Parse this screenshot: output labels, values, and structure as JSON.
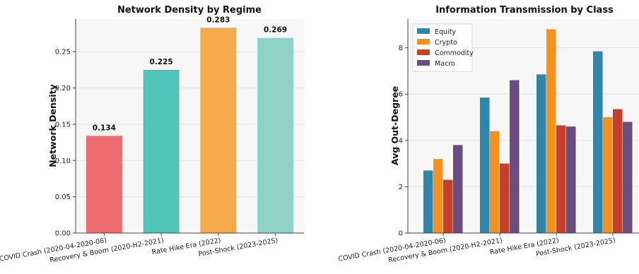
{
  "chart_data": [
    {
      "type": "bar",
      "title": "Network Density by Regime",
      "xlabel": "",
      "ylabel": "Network Density",
      "categories": [
        "COVID Crash (2020-04-2020-06)",
        "Recovery & Boom (2020-H2-2021)",
        "Rate Hike Era (2022)",
        "Post-Shock (2023-2025)"
      ],
      "values": [
        0.134,
        0.225,
        0.283,
        0.269
      ],
      "data_labels": [
        "0.134",
        "0.225",
        "0.283",
        "0.269"
      ],
      "colors": [
        "#ee6b6e",
        "#4ec5b8",
        "#f6aa4c",
        "#8fd3c7"
      ],
      "ylim": [
        0,
        0.295
      ],
      "yticks": [
        0.0,
        0.05,
        0.1,
        0.15,
        0.2,
        0.25
      ],
      "ytick_labels": [
        "0.00",
        "0.05",
        "0.10",
        "0.15",
        "0.20",
        "0.25"
      ],
      "grid": true
    },
    {
      "type": "bar",
      "title": "Information Transmission by Class",
      "xlabel": "",
      "ylabel": "Avg Out-Degree",
      "categories": [
        "COVID Crash (2020-04-2020-06)",
        "Recovery & Boom (2020-H2-2021)",
        "Rate Hike Era (2022)",
        "Post-Shock (2023-2025)"
      ],
      "series": [
        {
          "name": "Equity",
          "color": "#2e86ab",
          "values": [
            2.7,
            5.85,
            6.85,
            7.85
          ]
        },
        {
          "name": "Crypto",
          "color": "#f5921e",
          "values": [
            3.2,
            4.4,
            8.8,
            5.0
          ]
        },
        {
          "name": "Commodity",
          "color": "#c73e2b",
          "values": [
            2.3,
            3.0,
            4.65,
            5.35
          ]
        },
        {
          "name": "Macro",
          "color": "#6a4c7d",
          "values": [
            3.8,
            6.6,
            4.6,
            4.8
          ]
        }
      ],
      "ylim": [
        0,
        9.24
      ],
      "yticks": [
        0,
        2,
        4,
        6,
        8
      ],
      "ytick_labels": [
        "0",
        "2",
        "4",
        "6",
        "8"
      ],
      "legend_position": "top-left",
      "grid": true
    }
  ]
}
